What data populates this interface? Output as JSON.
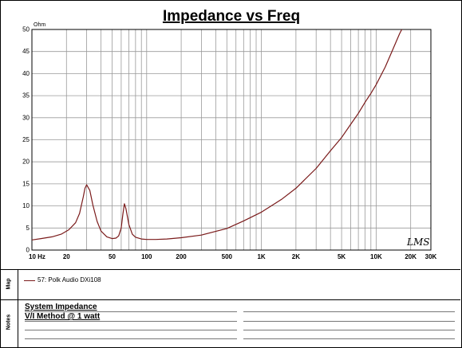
{
  "chart_data": {
    "type": "line",
    "title": "Impedance vs Freq",
    "yunit": "Ohm",
    "xscale": "log",
    "xlim": [
      10,
      30000
    ],
    "ylim": [
      0,
      50
    ],
    "grid": true,
    "xticks": [
      {
        "value": 10,
        "label": "10 Hz"
      },
      {
        "value": 20,
        "label": "20"
      },
      {
        "value": 50,
        "label": "50"
      },
      {
        "value": 100,
        "label": "100"
      },
      {
        "value": 200,
        "label": "200"
      },
      {
        "value": 500,
        "label": "500"
      },
      {
        "value": 1000,
        "label": "1K"
      },
      {
        "value": 2000,
        "label": "2K"
      },
      {
        "value": 5000,
        "label": "5K"
      },
      {
        "value": 10000,
        "label": "10K"
      },
      {
        "value": 20000,
        "label": "20K"
      },
      {
        "value": 30000,
        "label": "30K"
      }
    ],
    "yticks": [
      0,
      5,
      10,
      15,
      20,
      25,
      30,
      35,
      40,
      45,
      50
    ],
    "series": [
      {
        "name": "57: Polk Audio DXi108",
        "color": "#7a1a1a",
        "x": [
          10,
          12,
          15,
          18,
          21,
          24,
          26,
          28,
          29,
          30,
          32,
          34,
          37,
          40,
          45,
          50,
          54,
          57,
          60,
          62,
          64,
          66,
          70,
          75,
          80,
          90,
          100,
          120,
          150,
          200,
          300,
          500,
          700,
          1000,
          1500,
          2000,
          3000,
          4000,
          5000,
          6000,
          7000,
          8000,
          9000,
          10000,
          12000,
          14000,
          16000,
          17500
        ],
        "y": [
          2.3,
          2.6,
          3.0,
          3.6,
          4.6,
          6.2,
          8.3,
          12.0,
          14.0,
          14.8,
          13.5,
          10.2,
          6.5,
          4.3,
          3.0,
          2.6,
          2.7,
          3.2,
          5.0,
          8.0,
          10.5,
          9.4,
          5.8,
          3.6,
          2.9,
          2.5,
          2.4,
          2.4,
          2.5,
          2.8,
          3.4,
          4.9,
          6.6,
          8.6,
          11.5,
          14.0,
          18.5,
          22.5,
          25.5,
          28.5,
          31.0,
          33.5,
          35.5,
          37.5,
          41.5,
          45.5,
          49.0,
          51.0
        ]
      }
    ],
    "watermark": "LMS"
  },
  "notes": {
    "line1": "System Impedance",
    "line2": "V/I Method @ 1 watt"
  },
  "sections": {
    "map_label": "Map",
    "notes_label": "Notes"
  }
}
